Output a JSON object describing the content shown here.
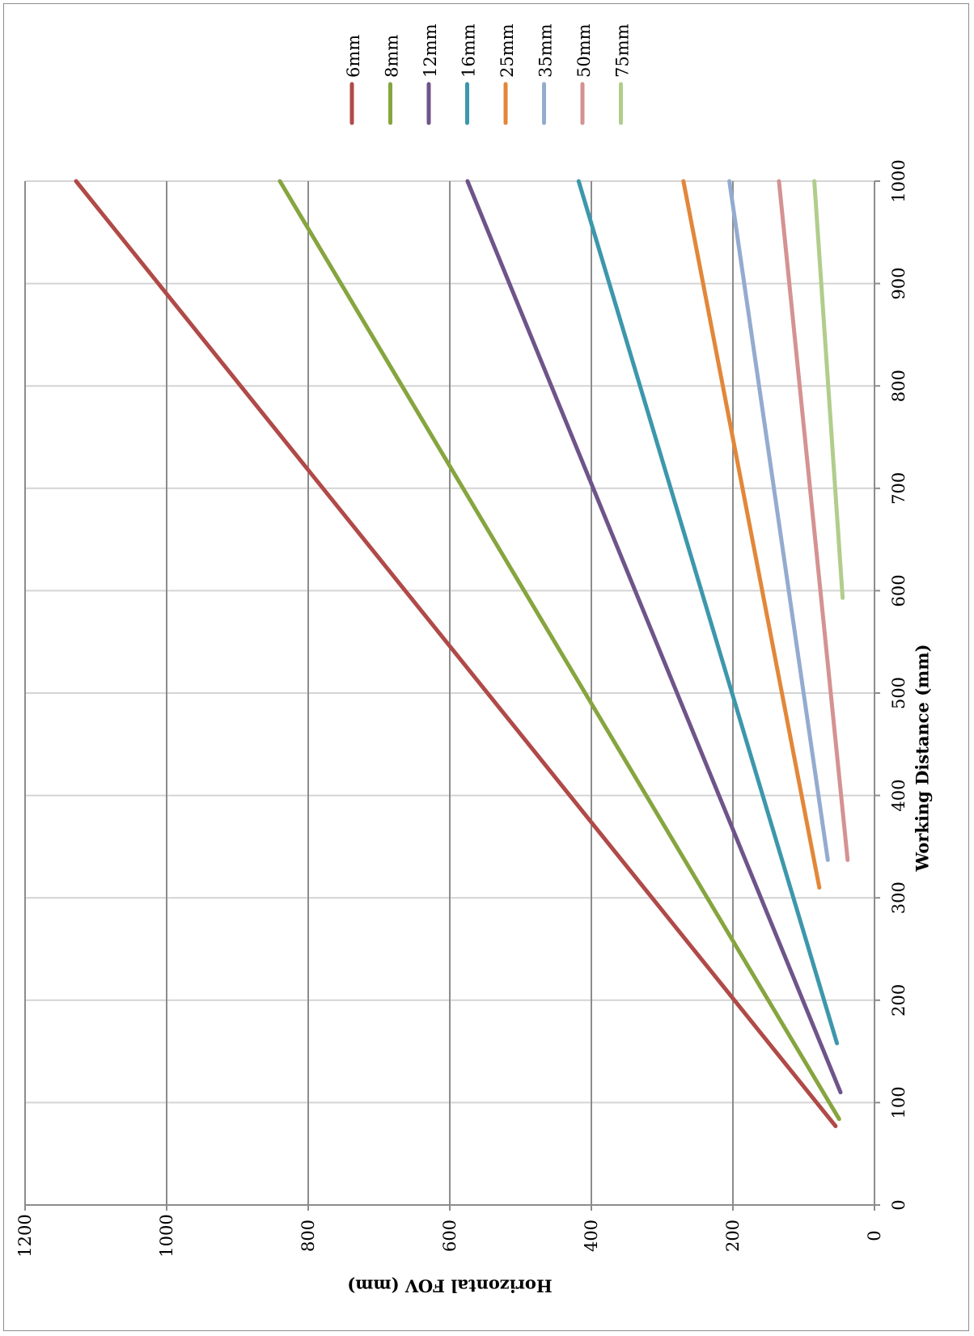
{
  "chart_data": {
    "type": "line",
    "xlabel": "Working Distance (mm)",
    "ylabel": "Horizontal FOV (mm)",
    "xlim": [
      0,
      1000
    ],
    "ylim": [
      0,
      1200
    ],
    "x_ticks": [
      "0",
      "100",
      "200",
      "300",
      "400",
      "500",
      "600",
      "700",
      "800",
      "900",
      "1000"
    ],
    "y_ticks": [
      "0",
      "200",
      "400",
      "600",
      "800",
      "1000",
      "1200"
    ],
    "grid": true,
    "legend_position": "top",
    "series": [
      {
        "name": "6mm",
        "color": "#b04a48",
        "x": [
          77,
          1000
        ],
        "y": [
          55,
          1128
        ]
      },
      {
        "name": "8mm",
        "color": "#86a53f",
        "x": [
          84,
          1000
        ],
        "y": [
          50,
          840
        ]
      },
      {
        "name": "12mm",
        "color": "#6f548a",
        "x": [
          110,
          1000
        ],
        "y": [
          48,
          575
        ]
      },
      {
        "name": "16mm",
        "color": "#3d97ac",
        "x": [
          158,
          1000
        ],
        "y": [
          53,
          418
        ]
      },
      {
        "name": "25mm",
        "color": "#e2873a",
        "x": [
          310,
          1000
        ],
        "y": [
          78,
          270
        ]
      },
      {
        "name": "35mm",
        "color": "#94abd0",
        "x": [
          337,
          1000
        ],
        "y": [
          66,
          205
        ]
      },
      {
        "name": "50mm",
        "color": "#d59292",
        "x": [
          337,
          1000
        ],
        "y": [
          38,
          135
        ]
      },
      {
        "name": "75mm",
        "color": "#b1cd8c",
        "x": [
          593,
          1000
        ],
        "y": [
          45,
          85
        ]
      }
    ]
  }
}
